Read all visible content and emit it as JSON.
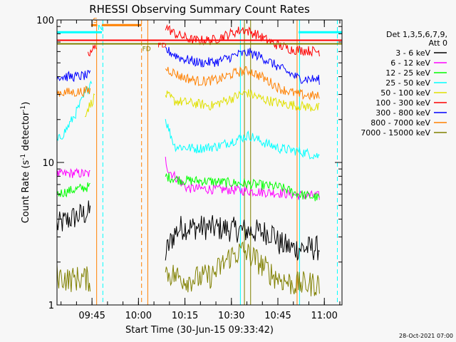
{
  "chart_data": {
    "type": "line",
    "title": "RHESSI Observing Summary Count Rates",
    "xlabel": "Start Time (30-Jun-15 09:33:42)",
    "ylabel_main": "Count Rate (s",
    "ylabel_sup": "-1",
    "ylabel_end": " detector",
    "ylabel_close": ")",
    "yscale": "log",
    "ylim": [
      1,
      100
    ],
    "xlim_minutes": [
      0,
      92
    ],
    "x_ticks": [
      {
        "minute": 11.3,
        "label": "09:45"
      },
      {
        "minute": 26.3,
        "label": "10:00"
      },
      {
        "minute": 41.3,
        "label": "10:15"
      },
      {
        "minute": 56.3,
        "label": "10:30"
      },
      {
        "minute": 71.3,
        "label": "10:45"
      },
      {
        "minute": 86.3,
        "label": "11:00"
      }
    ],
    "y_ticks": [
      {
        "value": 1,
        "label": "1"
      },
      {
        "value": 10,
        "label": "10"
      },
      {
        "value": 100,
        "label": "100"
      }
    ],
    "legend_position": "top-right",
    "legend_header": [
      "Det 1,3,5,6,7,9,",
      "Att 0"
    ],
    "series": [
      {
        "name": "3 - 6 keV",
        "color": "#000000",
        "segments": [
          [
            {
              "x": 0,
              "y": 3.6
            },
            {
              "x": 4,
              "y": 4.0
            },
            {
              "x": 8,
              "y": 4.3
            },
            {
              "x": 11,
              "y": 4.5
            }
          ],
          [
            {
              "x": 35,
              "y": 2.3
            },
            {
              "x": 38,
              "y": 3.2
            },
            {
              "x": 40,
              "y": 3.5
            },
            {
              "x": 48,
              "y": 3.5
            },
            {
              "x": 56,
              "y": 3.4
            },
            {
              "x": 62,
              "y": 3.3
            },
            {
              "x": 70,
              "y": 3.2
            },
            {
              "x": 71.5,
              "y": 2.7
            },
            {
              "x": 76,
              "y": 2.5
            },
            {
              "x": 85,
              "y": 2.5
            }
          ]
        ]
      },
      {
        "name": "6 - 12 keV",
        "color": "#ff00ff",
        "segments": [
          [
            {
              "x": 0,
              "y": 8.2
            },
            {
              "x": 5,
              "y": 8.4
            },
            {
              "x": 11,
              "y": 8.3
            }
          ],
          [
            {
              "x": 35,
              "y": 10.5
            },
            {
              "x": 36,
              "y": 8.8
            },
            {
              "x": 42,
              "y": 6.6
            },
            {
              "x": 50,
              "y": 6.5
            },
            {
              "x": 58,
              "y": 6.4
            },
            {
              "x": 66,
              "y": 6.2
            },
            {
              "x": 72,
              "y": 6.1
            },
            {
              "x": 78,
              "y": 5.9
            },
            {
              "x": 85,
              "y": 5.8
            }
          ]
        ]
      },
      {
        "name": "12 - 25 keV",
        "color": "#00ff00",
        "segments": [
          [
            {
              "x": 0,
              "y": 6.0
            },
            {
              "x": 5,
              "y": 6.4
            },
            {
              "x": 11,
              "y": 6.8
            }
          ],
          [
            {
              "x": 35,
              "y": 8.0
            },
            {
              "x": 40,
              "y": 7.5
            },
            {
              "x": 48,
              "y": 7.4
            },
            {
              "x": 56,
              "y": 7.2
            },
            {
              "x": 64,
              "y": 7.0
            },
            {
              "x": 72,
              "y": 6.7
            },
            {
              "x": 78,
              "y": 6.0
            },
            {
              "x": 85,
              "y": 5.6
            }
          ]
        ]
      },
      {
        "name": "25 - 50 keV",
        "color": "#00ffff",
        "segments": [
          [
            {
              "x": 0,
              "y": 14
            },
            {
              "x": 3,
              "y": 17
            },
            {
              "x": 6,
              "y": 22
            },
            {
              "x": 8,
              "y": 27
            },
            {
              "x": 10,
              "y": 33
            },
            {
              "x": 11.5,
              "y": 40
            }
          ],
          [
            {
              "x": 35,
              "y": 20
            },
            {
              "x": 38,
              "y": 13
            },
            {
              "x": 45,
              "y": 12.5
            },
            {
              "x": 52,
              "y": 13
            },
            {
              "x": 58,
              "y": 14.5
            },
            {
              "x": 62,
              "y": 15.5
            },
            {
              "x": 66,
              "y": 14
            },
            {
              "x": 72,
              "y": 12.5
            },
            {
              "x": 78,
              "y": 12
            },
            {
              "x": 85,
              "y": 11
            }
          ]
        ]
      },
      {
        "name": "50 - 100 keV",
        "color": "#e0e000",
        "segments": [
          [
            {
              "x": 9,
              "y": 22
            },
            {
              "x": 11,
              "y": 26
            },
            {
              "x": 12.5,
              "y": 30
            }
          ],
          [
            {
              "x": 35,
              "y": 30
            },
            {
              "x": 38,
              "y": 27
            },
            {
              "x": 44,
              "y": 26
            },
            {
              "x": 50,
              "y": 25
            },
            {
              "x": 56,
              "y": 28
            },
            {
              "x": 61,
              "y": 31
            },
            {
              "x": 66,
              "y": 28
            },
            {
              "x": 72,
              "y": 26
            },
            {
              "x": 78,
              "y": 25
            },
            {
              "x": 85,
              "y": 24
            }
          ]
        ]
      },
      {
        "name": "100 - 300 keV",
        "color": "#ff0000",
        "segments": [
          [
            {
              "x": 10,
              "y": 56
            },
            {
              "x": 12,
              "y": 63
            },
            {
              "x": 13,
              "y": 67
            }
          ],
          [
            {
              "x": 35,
              "y": 90
            },
            {
              "x": 38,
              "y": 80
            },
            {
              "x": 44,
              "y": 72
            },
            {
              "x": 50,
              "y": 72
            },
            {
              "x": 56,
              "y": 80
            },
            {
              "x": 60,
              "y": 86
            },
            {
              "x": 64,
              "y": 80
            },
            {
              "x": 70,
              "y": 68
            },
            {
              "x": 76,
              "y": 62
            },
            {
              "x": 85,
              "y": 60
            }
          ]
        ]
      },
      {
        "name": "300 - 800 keV",
        "color": "#0000ff",
        "segments": [
          [
            {
              "x": 0,
              "y": 40
            },
            {
              "x": 6,
              "y": 40
            },
            {
              "x": 11,
              "y": 41
            }
          ],
          [
            {
              "x": 35,
              "y": 62
            },
            {
              "x": 40,
              "y": 54
            },
            {
              "x": 46,
              "y": 50
            },
            {
              "x": 52,
              "y": 51
            },
            {
              "x": 58,
              "y": 57
            },
            {
              "x": 62,
              "y": 59
            },
            {
              "x": 66,
              "y": 55
            },
            {
              "x": 72,
              "y": 46
            },
            {
              "x": 78,
              "y": 39
            },
            {
              "x": 85,
              "y": 38
            }
          ]
        ]
      },
      {
        "name": "800 - 7000 keV",
        "color": "#ff8000",
        "segments": [
          [
            {
              "x": 0,
              "y": 31
            },
            {
              "x": 6,
              "y": 31
            },
            {
              "x": 11,
              "y": 32
            }
          ],
          [
            {
              "x": 35,
              "y": 46
            },
            {
              "x": 40,
              "y": 40
            },
            {
              "x": 46,
              "y": 37
            },
            {
              "x": 52,
              "y": 38
            },
            {
              "x": 58,
              "y": 43
            },
            {
              "x": 62,
              "y": 44
            },
            {
              "x": 66,
              "y": 40
            },
            {
              "x": 72,
              "y": 33
            },
            {
              "x": 78,
              "y": 30
            },
            {
              "x": 85,
              "y": 29
            }
          ]
        ]
      },
      {
        "name": "7000 - 15000 keV",
        "color": "#808000",
        "segments": [
          [
            {
              "x": 0,
              "y": 1.6
            },
            {
              "x": 4,
              "y": 1.5
            },
            {
              "x": 8,
              "y": 1.55
            },
            {
              "x": 11,
              "y": 1.5
            }
          ],
          [
            {
              "x": 35,
              "y": 1.7
            },
            {
              "x": 42,
              "y": 1.5
            },
            {
              "x": 50,
              "y": 1.6
            },
            {
              "x": 56,
              "y": 2.2
            },
            {
              "x": 60,
              "y": 2.4
            },
            {
              "x": 64,
              "y": 2.1
            },
            {
              "x": 70,
              "y": 1.6
            },
            {
              "x": 76,
              "y": 1.4
            },
            {
              "x": 85,
              "y": 1.4
            }
          ]
        ]
      }
    ],
    "status_bars": [
      {
        "label": "S",
        "color": "#ff8000",
        "x0": 11,
        "x1": 13,
        "y": 92
      },
      {
        "label": "N",
        "color": "#00ffff",
        "x0": 0,
        "x1": 14.5,
        "y": 82
      },
      {
        "label": "",
        "color": "#ff8000",
        "x0": 14.5,
        "x1": 27.3,
        "y": 92
      },
      {
        "label": "",
        "color": "#00ffff",
        "x0": 78,
        "x1": 92,
        "y": 82
      }
    ],
    "flag_lines": [
      {
        "label": "FD",
        "color": "#808000",
        "y": 68
      },
      {
        "label": "FD",
        "color": "#ff0000",
        "y": 72
      }
    ],
    "vlines": [
      {
        "x": 12.8,
        "color": "#ff8000",
        "style": "solid"
      },
      {
        "x": 14.8,
        "color": "#00ffff",
        "style": "dashed"
      },
      {
        "x": 27.3,
        "color": "#ff8000",
        "style": "dashed"
      },
      {
        "x": 29.3,
        "color": "#ff8000",
        "style": "solid"
      },
      {
        "x": 59.2,
        "color": "#00ffff",
        "style": "solid"
      },
      {
        "x": 60.5,
        "color": "#808000",
        "style": "solid"
      },
      {
        "x": 62.5,
        "color": "#808000",
        "style": "solid"
      },
      {
        "x": 77.5,
        "color": "#ff8000",
        "style": "solid"
      },
      {
        "x": 78.3,
        "color": "#00ffff",
        "style": "solid"
      },
      {
        "x": 90.5,
        "color": "#00ffff",
        "style": "dashed"
      }
    ],
    "grid": false
  },
  "footer": {
    "timestamp": "28-Oct-2021 07:00"
  }
}
